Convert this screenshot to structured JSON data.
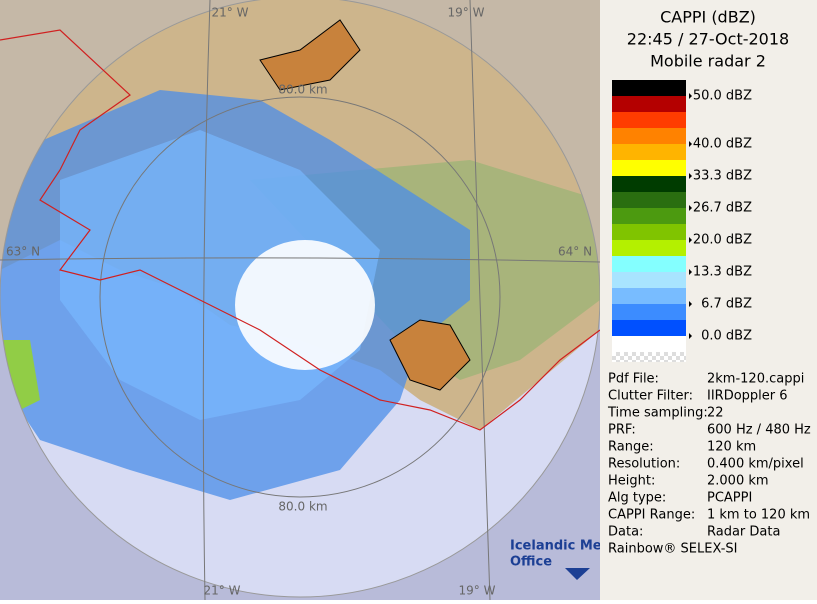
{
  "map": {
    "labels": {
      "lon_top_left": "21° W",
      "lon_top_right": "19° W",
      "lon_bottom_left": "21° W",
      "lon_bottom_right": "19° W",
      "lat_left": "63° N",
      "lat_right": "64° N",
      "range_top": "80.0 km",
      "range_bottom": "80.0 km"
    },
    "logo": {
      "line1": "Icelandic Met",
      "line2": "Office"
    }
  },
  "panel": {
    "title": [
      "CAPPI (dBZ)",
      "22:45 / 27-Oct-2018",
      "Mobile radar 2"
    ],
    "legend": {
      "colors": [
        "#000000",
        "#b40000",
        "#ff3c00",
        "#ff8200",
        "#ffb400",
        "#ffff00",
        "#003c00",
        "#2a6e10",
        "#4c9a10",
        "#80c400",
        "#b4f000",
        "#84ffff",
        "#a8e4ff",
        "#78bcff",
        "#3c8cff",
        "#0050ff",
        "#ffffff"
      ],
      "labels": [
        "50.0 dBZ",
        "40.0 dBZ",
        "33.3 dBZ",
        "26.7 dBZ",
        "20.0 dBZ",
        "13.3 dBZ",
        "6.7 dBZ",
        "0.0 dBZ"
      ]
    },
    "info": [
      [
        "Pdf File:",
        "2km-120.cappi"
      ],
      [
        "Clutter Filter:",
        "IIRDoppler 6"
      ],
      [
        "Time sampling:",
        "22"
      ],
      [
        "PRF:",
        "600 Hz / 480 Hz"
      ],
      [
        "Range:",
        "120 km"
      ],
      [
        "Resolution:",
        "0.400 km/pixel"
      ],
      [
        "Height:",
        "2.000 km"
      ],
      [
        "Alg type:",
        "PCAPPI"
      ],
      [
        "CAPPI Range:",
        "1 km to 120 km"
      ],
      [
        "Data:",
        "Radar Data"
      ]
    ],
    "footer": "Rainbow® SELEX-SI"
  }
}
